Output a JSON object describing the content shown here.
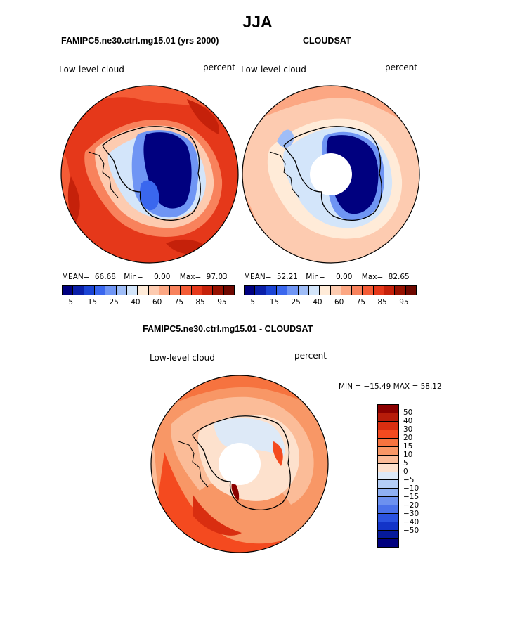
{
  "title": "JJA",
  "panels": [
    {
      "subtitle": "FAMIPC5.ne30.ctrl.mg15.01 (yrs 2000)",
      "left_label": "Low-level cloud",
      "right_label": "percent",
      "stats": {
        "mean_label": "MEAN=",
        "mean": "66.68",
        "min_label": "Min=",
        "min": "0.00",
        "max_label": "Max=",
        "max": "97.03"
      }
    },
    {
      "subtitle": "CLOUDSAT",
      "left_label": "Low-level cloud",
      "right_label": "percent",
      "stats": {
        "mean_label": "MEAN=",
        "mean": "52.21",
        "min_label": "Min=",
        "min": "0.00",
        "max_label": "Max=",
        "max": "82.65"
      }
    }
  ],
  "colorbar": {
    "colors": [
      "#00007f",
      "#0a1fa8",
      "#1b44d4",
      "#3a67ee",
      "#6f95f4",
      "#9fbdf7",
      "#d3e5fa",
      "#ffebd8",
      "#fdcbb0",
      "#fca783",
      "#f8825c",
      "#f45c36",
      "#e5381a",
      "#c5210a",
      "#961100",
      "#6f0800"
    ],
    "tick_labels": [
      "5",
      "15",
      "25",
      "40",
      "60",
      "75",
      "85",
      "95"
    ]
  },
  "diff_panel": {
    "subtitle": "FAMIPC5.ne30.ctrl.mg15.01 - CLOUDSAT",
    "left_label": "Low-level cloud",
    "right_label": "percent",
    "minmax": "MIN = −15.49 MAX =  58.12"
  },
  "diff_colorbar": {
    "colors": [
      "#8b0000",
      "#b71c0a",
      "#d92e10",
      "#f44a1f",
      "#f6733f",
      "#f89766",
      "#fbbc98",
      "#fde1cd",
      "#dde9f7",
      "#b4cdf6",
      "#8fb0f3",
      "#6d91ef",
      "#4b72ea",
      "#2b53e0",
      "#1334c8",
      "#061a9c",
      "#00007f"
    ],
    "tick_labels": [
      "50",
      "40",
      "30",
      "20",
      "15",
      "10",
      "5",
      "0",
      "−5",
      "−10",
      "−15",
      "−20",
      "−30",
      "−40",
      "−50"
    ]
  },
  "chart_data": [
    {
      "type": "heatmap",
      "projection": "south polar stereographic",
      "title": "FAMIPC5.ne30.ctrl.mg15.01 (yrs 2000)",
      "variable": "Low-level cloud",
      "units": "percent",
      "levels": [
        5,
        10,
        15,
        20,
        25,
        30,
        40,
        50,
        60,
        70,
        75,
        80,
        85,
        90,
        95
      ],
      "mean": 66.68,
      "min": 0.0,
      "max": 97.03
    },
    {
      "type": "heatmap",
      "projection": "south polar stereographic",
      "title": "CLOUDSAT",
      "variable": "Low-level cloud",
      "units": "percent",
      "levels": [
        5,
        10,
        15,
        20,
        25,
        30,
        40,
        50,
        60,
        70,
        75,
        80,
        85,
        90,
        95
      ],
      "mean": 52.21,
      "min": 0.0,
      "max": 82.65
    },
    {
      "type": "heatmap",
      "projection": "south polar stereographic",
      "title": "FAMIPC5.ne30.ctrl.mg15.01 - CLOUDSAT",
      "variable": "Low-level cloud",
      "units": "percent",
      "levels": [
        -50,
        -40,
        -30,
        -20,
        -15,
        -10,
        -5,
        0,
        5,
        10,
        15,
        20,
        30,
        40,
        50
      ],
      "min": -15.49,
      "max": 58.12
    }
  ]
}
